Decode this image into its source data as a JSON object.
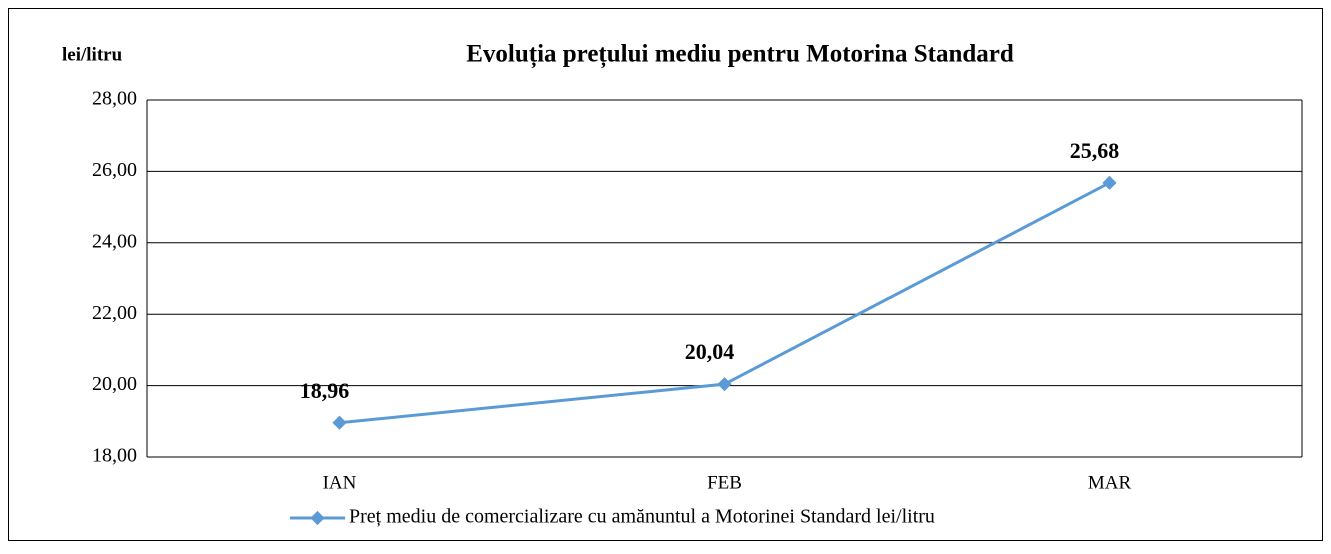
{
  "chart_data": {
    "type": "line",
    "title": "Evoluția prețului mediu pentru Motorina Standard",
    "y_label": "lei/litru",
    "categories": [
      "IAN",
      "FEB",
      "MAR"
    ],
    "series": [
      {
        "name": "Preț mediu de comercializare cu amănuntul a Motorinei Standard lei/litru",
        "color": "#5b9bd5",
        "values": [
          18.96,
          20.04,
          25.68
        ],
        "value_labels": [
          "18,96",
          "20,04",
          "25,68"
        ]
      }
    ],
    "ylim": [
      18,
      28
    ],
    "yticks": [
      {
        "value": 18,
        "label": "18,00"
      },
      {
        "value": 20,
        "label": "20,00"
      },
      {
        "value": 22,
        "label": "22,00"
      },
      {
        "value": 24,
        "label": "24,00"
      },
      {
        "value": 26,
        "label": "26,00"
      },
      {
        "value": 28,
        "label": "28,00"
      }
    ],
    "grid": true,
    "legend": "bottom"
  }
}
